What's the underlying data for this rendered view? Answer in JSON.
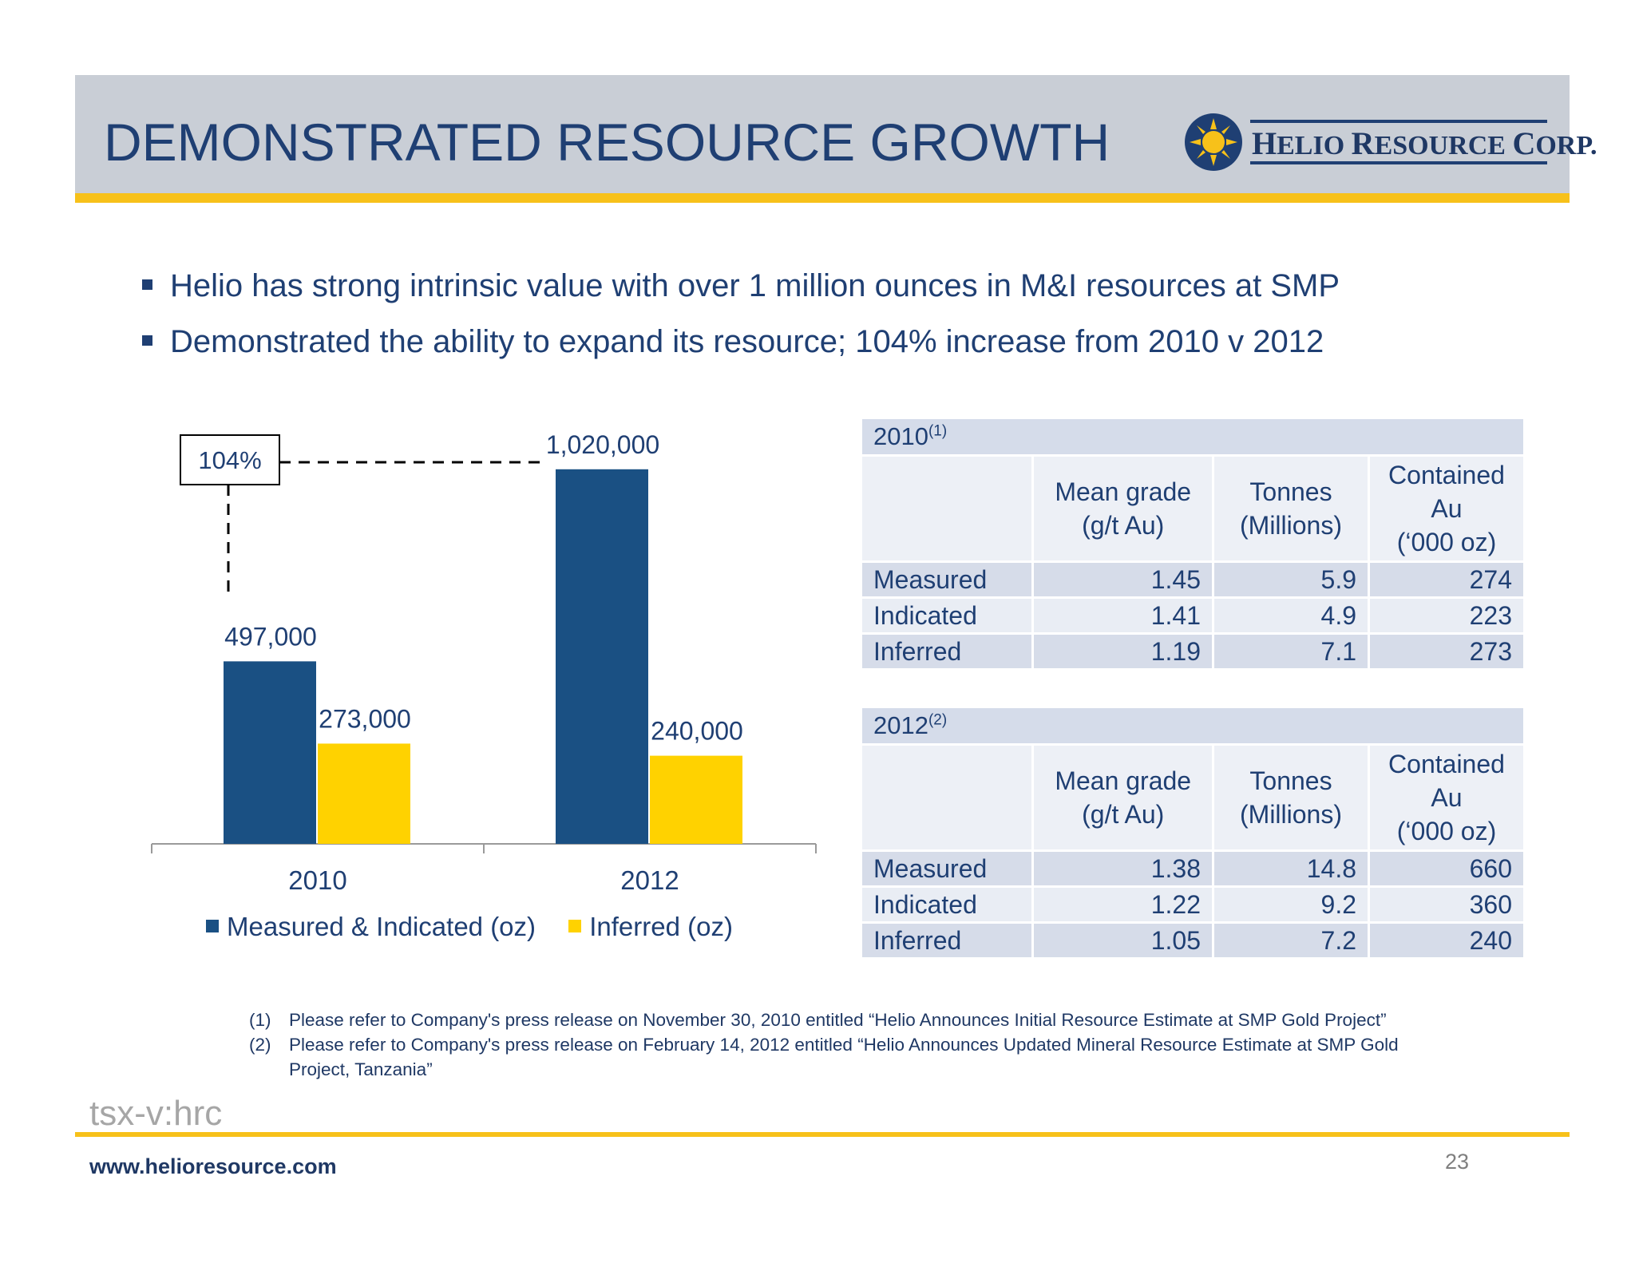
{
  "header": {
    "title": "DEMONSTRATED RESOURCE GROWTH",
    "logo_text_parts": [
      "H",
      "ELIO ",
      "R",
      "ESOURCE ",
      "C",
      "ORP",
      "."
    ]
  },
  "bullets": [
    "Helio has strong intrinsic value with over 1 million ounces in M&I resources at SMP",
    "Demonstrated the ability to expand its resource; 104% increase from 2010 v 2012"
  ],
  "colors": {
    "mi": "#1a5083",
    "inferred": "#ffd200",
    "navy": "#1f3f73",
    "gold": "#f7c11a"
  },
  "chart_data": {
    "type": "bar",
    "categories": [
      "2010",
      "2012"
    ],
    "series": [
      {
        "name": "Measured & Indicated (oz)",
        "values": [
          497000,
          1020000
        ],
        "labels": [
          "497,000",
          "1,020,000"
        ]
      },
      {
        "name": "Inferred (oz)",
        "values": [
          273000,
          240000
        ],
        "labels": [
          "273,000",
          "240,000"
        ]
      }
    ],
    "ylim": [
      0,
      1200000
    ],
    "grid": false,
    "annotation": "104%",
    "legend_position": "bottom"
  },
  "tables": [
    {
      "year": "2010",
      "note": "(1)",
      "headers": [
        "Mean grade|(g/t Au)",
        "Tonnes|(Millions)",
        "Contained|Au|(‘000 oz)"
      ],
      "rows": [
        {
          "label": "Measured",
          "grade": "1.45",
          "tonnes": "5.9",
          "contained": "274"
        },
        {
          "label": "Indicated",
          "grade": "1.41",
          "tonnes": "4.9",
          "contained": "223"
        },
        {
          "label": "Inferred",
          "grade": "1.19",
          "tonnes": "7.1",
          "contained": "273"
        }
      ]
    },
    {
      "year": "2012",
      "note": "(2)",
      "headers": [
        "Mean grade|(g/t Au)",
        "Tonnes|(Millions)",
        "Contained|Au|(‘000 oz)"
      ],
      "rows": [
        {
          "label": "Measured",
          "grade": "1.38",
          "tonnes": "14.8",
          "contained": "660"
        },
        {
          "label": "Indicated",
          "grade": "1.22",
          "tonnes": "9.2",
          "contained": "360"
        },
        {
          "label": "Inferred",
          "grade": "1.05",
          "tonnes": "7.2",
          "contained": "240"
        }
      ]
    }
  ],
  "footnotes": [
    {
      "num": "(1)",
      "text": "Please refer to Company's press release on November 30, 2010 entitled “Helio Announces Initial Resource Estimate at SMP Gold Project”"
    },
    {
      "num": "(2)",
      "text": "Please refer to Company's press release on February 14, 2012 entitled “Helio Announces Updated Mineral Resource Estimate at SMP Gold Project, Tanzania”"
    }
  ],
  "footer": {
    "ticker": "tsx-v:hrc",
    "url": "www.helioresource.com",
    "page": "23"
  }
}
